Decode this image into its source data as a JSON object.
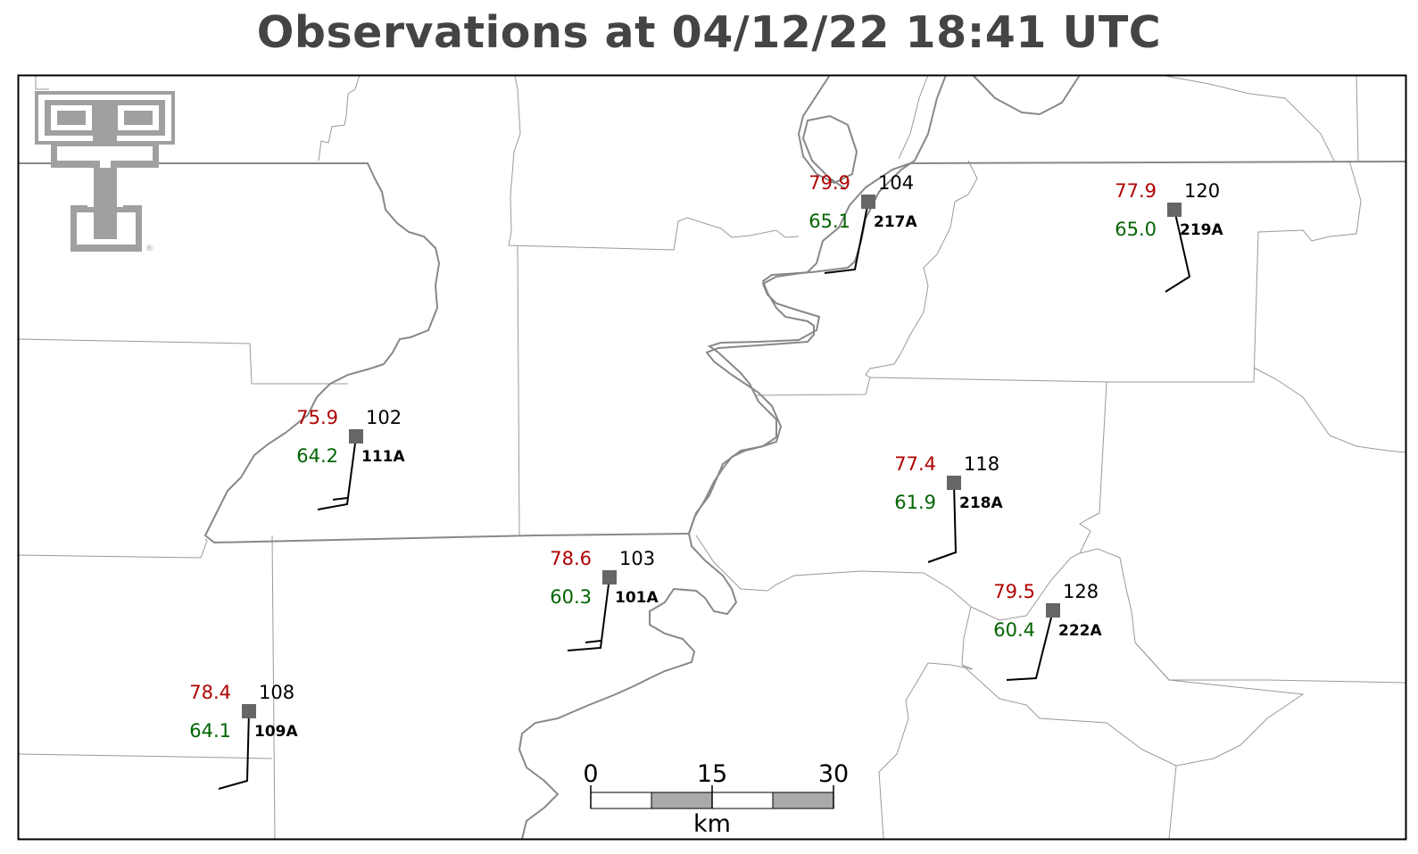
{
  "title": "Observations at 04/12/22 18:41 UTC",
  "logo": {
    "name": "texas-tech-double-t-logo",
    "mark": "®"
  },
  "stations": [
    {
      "id": "217A",
      "temp": "79.9",
      "dew": "65.1",
      "pressure": "104"
    },
    {
      "id": "219A",
      "temp": "77.9",
      "dew": "65.0",
      "pressure": "120"
    },
    {
      "id": "111A",
      "temp": "75.9",
      "dew": "64.2",
      "pressure": "102"
    },
    {
      "id": "218A",
      "temp": "77.4",
      "dew": "61.9",
      "pressure": "118"
    },
    {
      "id": "101A",
      "temp": "78.6",
      "dew": "60.3",
      "pressure": "103"
    },
    {
      "id": "222A",
      "temp": "79.5",
      "dew": "60.4",
      "pressure": "128"
    },
    {
      "id": "109A",
      "temp": "78.4",
      "dew": "64.1",
      "pressure": "108"
    }
  ],
  "scale_bar": {
    "ticks": [
      "0",
      "15",
      "30"
    ],
    "unit": "km"
  },
  "colors": {
    "temperature": "#b00000",
    "dewpoint": "#006400",
    "station": "#666666",
    "title": "#444444"
  }
}
